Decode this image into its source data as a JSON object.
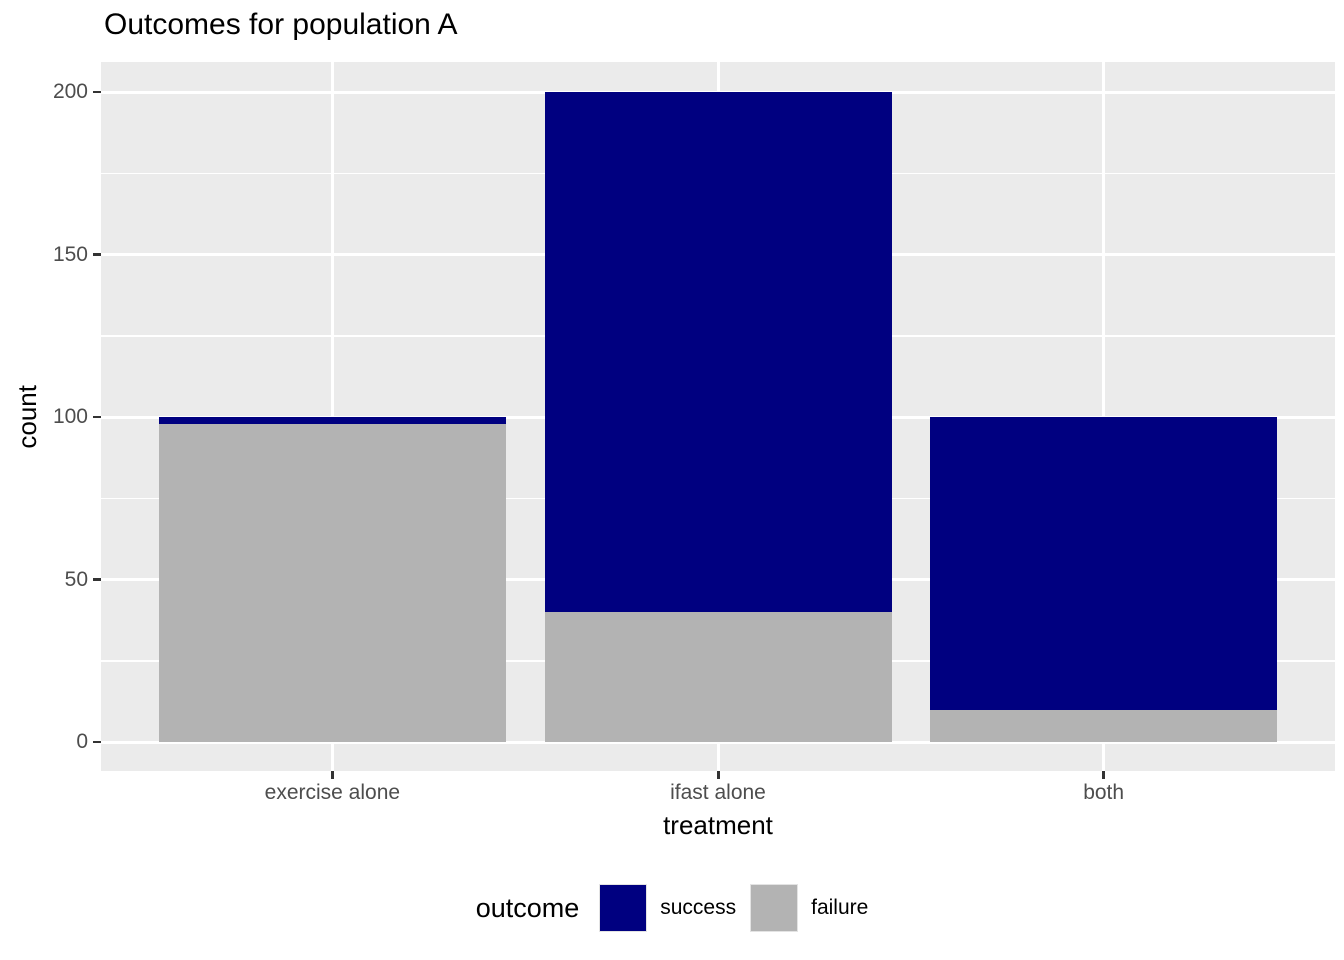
{
  "chart_data": {
    "type": "bar",
    "stacked": true,
    "title": "Outcomes for population A",
    "xlabel": "treatment",
    "ylabel": "count",
    "categories": [
      "exercise alone",
      "ifast alone",
      "both"
    ],
    "series": [
      {
        "name": "success",
        "color": "#000080",
        "values": [
          2,
          160,
          90
        ]
      },
      {
        "name": "failure",
        "color": "#b3b3b3",
        "values": [
          98,
          40,
          10
        ]
      }
    ],
    "ylim": [
      0,
      200
    ],
    "yticks": [
      0,
      50,
      100,
      150,
      200
    ],
    "y_minor_ticks": [
      25,
      75,
      125,
      175
    ],
    "legend_title": "outcome",
    "legend_position": "bottom",
    "grid": true
  },
  "colors": {
    "panel_bg": "#ebebeb",
    "grid_major": "#ffffff",
    "grid_minor": "#ffffff",
    "axis_text": "#4d4d4d",
    "tick_mark": "#333333",
    "title_text": "#000000"
  }
}
